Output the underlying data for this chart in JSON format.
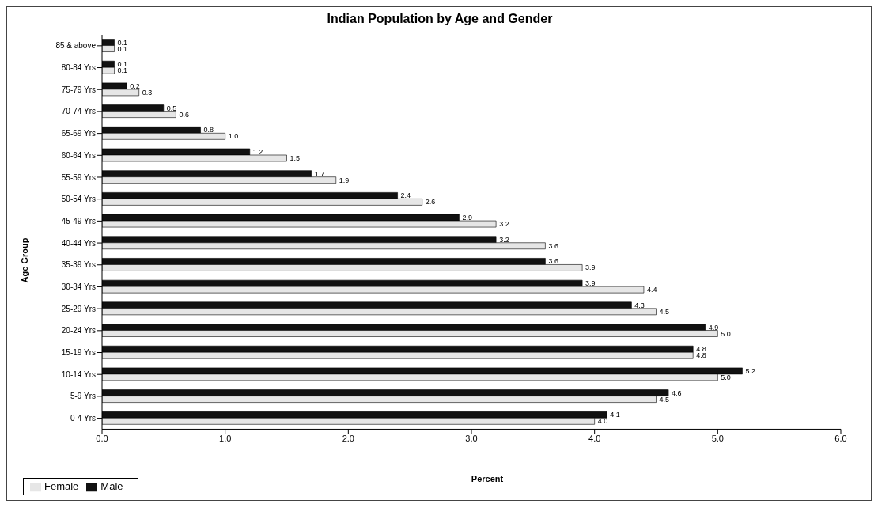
{
  "chart_data": {
    "type": "bar",
    "orientation": "horizontal",
    "title": "Indian Population by Age and Gender",
    "xlabel": "Percent",
    "ylabel": "Age Group",
    "categories": [
      "85 & above",
      "80-84 Yrs",
      "75-79 Yrs",
      "70-74 Yrs",
      "65-69 Yrs",
      "60-64 Yrs",
      "55-59 Yrs",
      "50-54 Yrs",
      "45-49 Yrs",
      "40-44 Yrs",
      "35-39 Yrs",
      "30-34 Yrs",
      "25-29 Yrs",
      "20-24 Yrs",
      "15-19 Yrs",
      "10-14 Yrs",
      "5-9 Yrs",
      "0-4 Yrs"
    ],
    "series": [
      {
        "name": "Female",
        "color": "#e6e6e6",
        "values": [
          0.1,
          0.1,
          0.3,
          0.6,
          1.0,
          1.5,
          1.9,
          2.6,
          3.2,
          3.6,
          3.9,
          4.4,
          4.5,
          5.0,
          4.8,
          5.0,
          4.5,
          4.0
        ],
        "value_labels": [
          "0.1",
          "0.1",
          "0.3",
          "0.6",
          "1.0",
          "1.5",
          "1.9",
          "2.6",
          "3.2",
          "3.6",
          "3.9",
          "4.4",
          "4.5",
          "5.0",
          "4.8",
          "5.0",
          "4.5",
          "4.0"
        ]
      },
      {
        "name": "Male",
        "color": "#111111",
        "values": [
          0.1,
          0.1,
          0.2,
          0.5,
          0.8,
          1.2,
          1.7,
          2.4,
          2.9,
          3.2,
          3.6,
          3.9,
          4.3,
          4.9,
          4.8,
          5.2,
          4.6,
          4.1
        ],
        "value_labels": [
          "0.1",
          "0.1",
          "0.2",
          "0.5",
          "0.8",
          "1.2",
          "1.7",
          "2.4",
          "2.9",
          "3.2",
          "3.6",
          "3.9",
          "4.3",
          "4.9",
          "4.8",
          "5.2",
          "4.6",
          "4.1"
        ]
      }
    ],
    "xlim": [
      0,
      6
    ],
    "xticks": [
      {
        "value": 0,
        "label": "0.0"
      },
      {
        "value": 1,
        "label": "1.0"
      },
      {
        "value": 2,
        "label": "2.0"
      },
      {
        "value": 3,
        "label": "3.0"
      },
      {
        "value": 4,
        "label": "4.0"
      },
      {
        "value": 5,
        "label": "5.0"
      },
      {
        "value": 6,
        "label": "6.0"
      }
    ],
    "grid": false,
    "legend": "bottom left"
  }
}
